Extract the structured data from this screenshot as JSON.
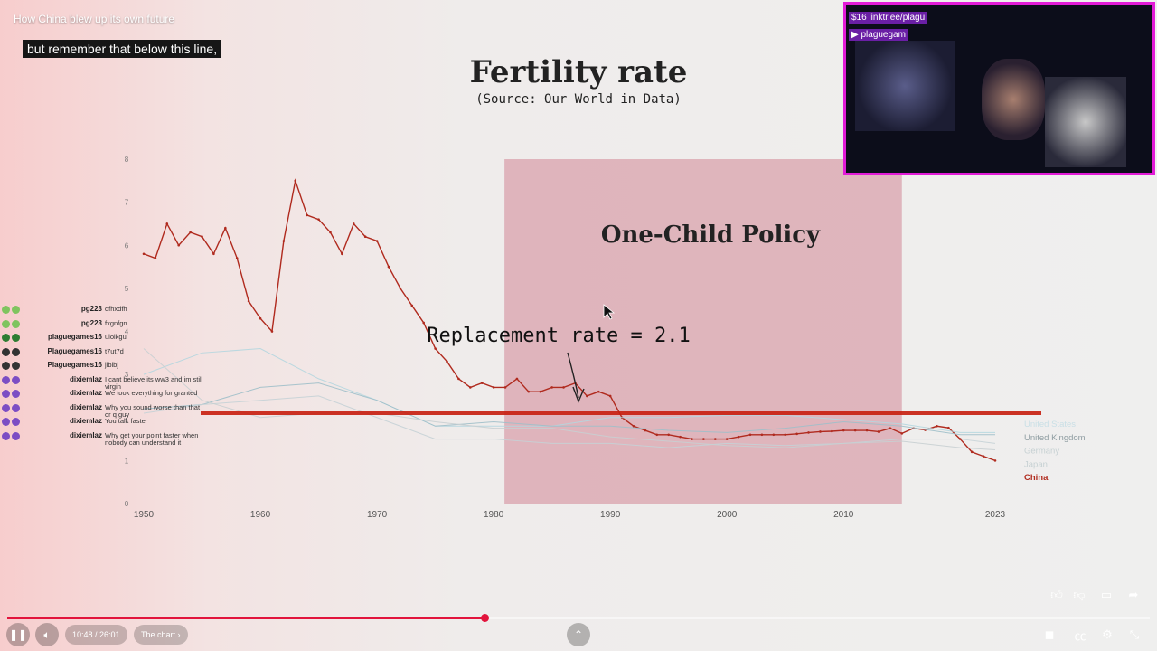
{
  "video": {
    "title": "How China blew up its own future",
    "caption": "but remember that below this line,"
  },
  "chart_data": {
    "type": "line",
    "title": "Fertility rate",
    "subtitle": "(Source: Our World in Data)",
    "xlabel": "",
    "ylabel": "",
    "xlim": [
      1950,
      2023
    ],
    "ylim": [
      0,
      8
    ],
    "x_ticks": [
      "1950",
      "1960",
      "1970",
      "1980",
      "1990",
      "2000",
      "2010",
      "2023"
    ],
    "y_ticks": [
      "0",
      "1",
      "2",
      "3",
      "4",
      "5",
      "6",
      "7",
      "8"
    ],
    "grid": false,
    "legend": [
      "United States",
      "United Kingdom",
      "Germany",
      "Japan",
      "China"
    ],
    "annotations": {
      "policy": "One-Child Policy",
      "policy_range": [
        1980,
        2015
      ],
      "replacement": "Replacement rate = 2.1",
      "replacement_value": 2.1
    },
    "series": [
      {
        "name": "China",
        "color": "#b02a1e",
        "x": [
          1950,
          1951,
          1952,
          1953,
          1954,
          1955,
          1956,
          1957,
          1958,
          1959,
          1960,
          1961,
          1962,
          1963,
          1964,
          1965,
          1966,
          1967,
          1968,
          1969,
          1970,
          1971,
          1972,
          1973,
          1974,
          1975,
          1976,
          1977,
          1978,
          1979,
          1980,
          1981,
          1982,
          1983,
          1984,
          1985,
          1986,
          1987,
          1988,
          1989,
          1990,
          1991,
          1992,
          1993,
          1994,
          1995,
          1996,
          1997,
          1998,
          1999,
          2000,
          2001,
          2002,
          2003,
          2004,
          2005,
          2006,
          2007,
          2008,
          2009,
          2010,
          2011,
          2012,
          2013,
          2014,
          2015,
          2016,
          2017,
          2018,
          2019,
          2020,
          2021,
          2022,
          2023
        ],
        "y": [
          5.8,
          5.7,
          6.5,
          6.0,
          6.3,
          6.2,
          5.8,
          6.4,
          5.7,
          4.7,
          4.3,
          4.0,
          6.1,
          7.5,
          6.7,
          6.6,
          6.3,
          5.8,
          6.5,
          6.2,
          6.1,
          5.5,
          5.0,
          4.6,
          4.2,
          3.6,
          3.3,
          2.9,
          2.7,
          2.8,
          2.7,
          2.7,
          2.9,
          2.6,
          2.6,
          2.7,
          2.7,
          2.8,
          2.5,
          2.6,
          2.5,
          2.0,
          1.8,
          1.7,
          1.6,
          1.6,
          1.55,
          1.5,
          1.5,
          1.5,
          1.5,
          1.55,
          1.6,
          1.6,
          1.6,
          1.6,
          1.62,
          1.65,
          1.67,
          1.68,
          1.7,
          1.7,
          1.7,
          1.67,
          1.75,
          1.63,
          1.75,
          1.71,
          1.8,
          1.76,
          1.5,
          1.2,
          1.1,
          1.0
        ]
      },
      {
        "name": "United States",
        "color": "#b4d6df",
        "x": [
          1950,
          1955,
          1960,
          1965,
          1970,
          1975,
          1980,
          1985,
          1990,
          1995,
          2000,
          2005,
          2010,
          2015,
          2020,
          2023
        ],
        "y": [
          3.0,
          3.5,
          3.6,
          2.9,
          2.4,
          1.8,
          1.8,
          1.8,
          2.0,
          2.0,
          2.05,
          2.05,
          1.95,
          1.85,
          1.65,
          1.65
        ]
      },
      {
        "name": "United Kingdom",
        "color": "#9fbfc9",
        "x": [
          1950,
          1955,
          1960,
          1965,
          1970,
          1975,
          1980,
          1985,
          1990,
          1995,
          2000,
          2005,
          2010,
          2015,
          2020,
          2023
        ],
        "y": [
          2.2,
          2.3,
          2.7,
          2.8,
          2.4,
          1.8,
          1.9,
          1.8,
          1.8,
          1.7,
          1.65,
          1.75,
          1.9,
          1.8,
          1.6,
          1.6
        ]
      },
      {
        "name": "Germany",
        "color": "#c5d2d6",
        "x": [
          1950,
          1955,
          1960,
          1965,
          1970,
          1975,
          1980,
          1985,
          1990,
          1995,
          2000,
          2005,
          2010,
          2015,
          2020,
          2023
        ],
        "y": [
          2.1,
          2.3,
          2.4,
          2.5,
          2.0,
          1.5,
          1.5,
          1.4,
          1.4,
          1.3,
          1.4,
          1.35,
          1.4,
          1.5,
          1.5,
          1.4
        ]
      },
      {
        "name": "Japan",
        "color": "#c8cfd1",
        "x": [
          1950,
          1955,
          1960,
          1965,
          1970,
          1975,
          1980,
          1985,
          1990,
          1995,
          2000,
          2005,
          2010,
          2015,
          2020,
          2023
        ],
        "y": [
          3.6,
          2.4,
          2.0,
          2.1,
          2.1,
          1.9,
          1.75,
          1.75,
          1.55,
          1.45,
          1.35,
          1.3,
          1.4,
          1.45,
          1.3,
          1.25
        ]
      }
    ]
  },
  "chat": [
    {
      "user": "pg223",
      "msg": "dfhxdfh",
      "color": "#7fc45f"
    },
    {
      "user": "pg223",
      "msg": "fxgnfgn",
      "color": "#7fc45f"
    },
    {
      "user": "plaguegames16",
      "msg": "ulolkgu",
      "color": "#2e7d32"
    },
    {
      "user": "Plaguegames16",
      "msg": "t7ut7d",
      "color": "#333333"
    },
    {
      "user": "Plaguegames16",
      "msg": "jlblbj",
      "color": "#333333"
    },
    {
      "user": "dixiemlaz",
      "msg": "I cant believe its ww3 and im still virgin",
      "color": "#7c4dc4"
    },
    {
      "user": "dixiemlaz",
      "msg": "We took everything for granted",
      "color": "#7c4dc4"
    },
    {
      "user": "dixiemlaz",
      "msg": "Why you sound worse than that or q guy",
      "color": "#7c4dc4"
    },
    {
      "user": "dixiemlaz",
      "msg": "You talk faster",
      "color": "#7c4dc4"
    },
    {
      "user": "dixiemlaz",
      "msg": "Why get your point faster when nobody can understand it",
      "color": "#7c4dc4"
    }
  ],
  "webcam": {
    "link_text": "$16 linktr.ee/plagu",
    "channel": "plaguegam"
  },
  "player": {
    "time": "10:48 / 26:01",
    "chapter": "The chart",
    "progress": 0.418,
    "buffered": 0.7
  },
  "icons": {
    "play_pause": "pause-icon",
    "volume": "volume-icon",
    "chapter_chevron": "chevron-right-icon",
    "expand": "chevron-up-icon",
    "like": "thumbs-up-icon",
    "dislike": "thumbs-down-icon",
    "comment": "comment-icon",
    "share": "share-icon",
    "miniplayer": "miniplayer-icon",
    "captions": "captions-icon",
    "settings": "gear-icon",
    "fullscreen": "fullscreen-icon"
  }
}
